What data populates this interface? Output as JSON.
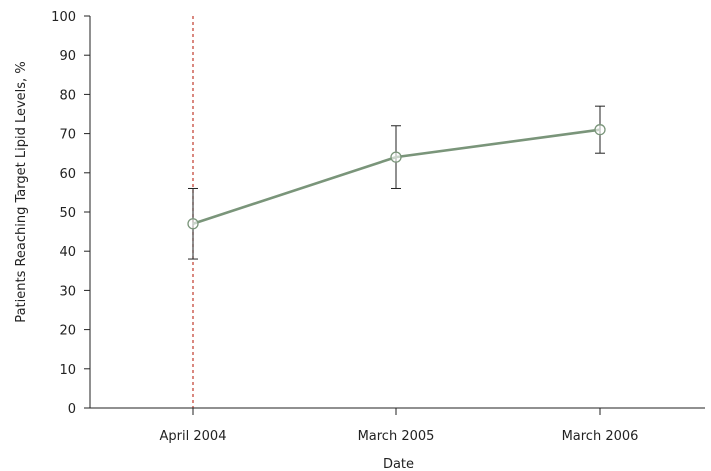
{
  "chart_data": {
    "type": "line",
    "xlabel": "Date",
    "ylabel": "Patients Reaching Target Lipid Levels, %",
    "categories": [
      "April 2004",
      "March 2005",
      "March 2006"
    ],
    "ylim": [
      0,
      100
    ],
    "yticks": [
      0,
      10,
      20,
      30,
      40,
      50,
      60,
      70,
      80,
      90,
      100
    ],
    "grid": false,
    "series": [
      {
        "values": [
          47,
          64,
          71
        ],
        "error_low": [
          38,
          56,
          65
        ],
        "error_high": [
          56,
          72,
          77
        ],
        "color": "#7a957a",
        "marker": "open-circle"
      }
    ],
    "reference_line": {
      "at_category": "April 2004",
      "style": "dashed",
      "color": "#c0392b"
    }
  }
}
